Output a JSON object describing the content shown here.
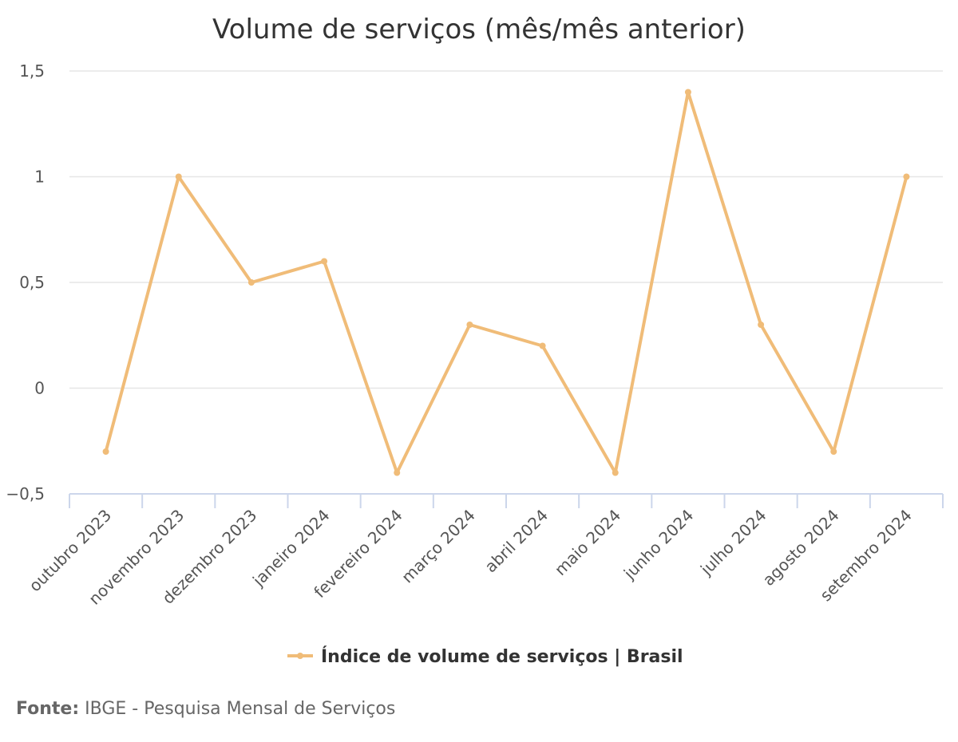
{
  "chart_data": {
    "type": "line",
    "title": "Volume de serviços (mês/mês anterior)",
    "xlabel": "",
    "ylabel": "",
    "categories": [
      "outubro 2023",
      "novembro 2023",
      "dezembro 2023",
      "janeiro 2024",
      "fevereiro 2024",
      "março 2024",
      "abril 2024",
      "maio 2024",
      "junho 2024",
      "julho 2024",
      "agosto 2024",
      "setembro 2024"
    ],
    "series": [
      {
        "name": "Índice de volume de serviços | Brasil",
        "color": "#f0bc78",
        "values": [
          -0.3,
          1.0,
          0.5,
          0.6,
          -0.4,
          0.3,
          0.2,
          -0.4,
          1.4,
          0.3,
          -0.3,
          1.0
        ]
      }
    ],
    "ylim": [
      -0.5,
      1.5
    ],
    "yticks": [
      -0.5,
      0,
      0.5,
      1,
      1.5
    ],
    "ytick_labels": [
      "−0,5",
      "0",
      "0,5",
      "1",
      "1,5"
    ],
    "grid": true,
    "legend": "bottom-center"
  },
  "source": {
    "label": "Fonte:",
    "text": "IBGE - Pesquisa Mensal de Serviços"
  }
}
